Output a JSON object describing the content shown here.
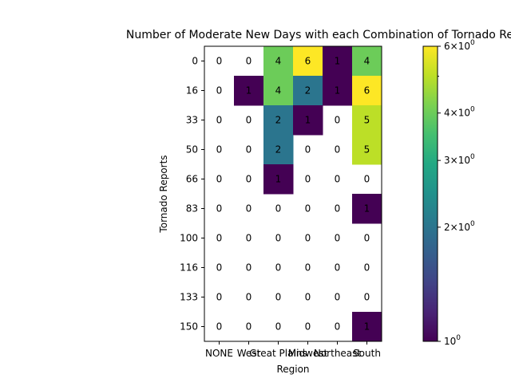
{
  "chart_data": {
    "type": "heatmap",
    "title": "Number of Moderate New Days with each Combination of Tornado Reports and Region",
    "xlabel": "Region",
    "ylabel": "Tornado Reports",
    "x_categories": [
      "NONE",
      "West",
      "Great Plains",
      "Midwest",
      "Northeast",
      "South"
    ],
    "x_tick_labels": [
      "NONE",
      "West",
      "Great Plains",
      "Midwest",
      "Northeast",
      "South"
    ],
    "y_categories": [
      "0",
      "16",
      "33",
      "50",
      "66",
      "83",
      "100",
      "116",
      "133",
      "150"
    ],
    "values": [
      [
        0,
        0,
        4,
        6,
        1,
        4
      ],
      [
        0,
        1,
        4,
        2,
        1,
        6
      ],
      [
        0,
        0,
        2,
        1,
        0,
        5
      ],
      [
        0,
        0,
        2,
        0,
        0,
        5
      ],
      [
        0,
        0,
        1,
        0,
        0,
        0
      ],
      [
        0,
        0,
        0,
        0,
        0,
        1
      ],
      [
        0,
        0,
        0,
        0,
        0,
        0
      ],
      [
        0,
        0,
        0,
        0,
        0,
        0
      ],
      [
        0,
        0,
        0,
        0,
        0,
        0
      ],
      [
        0,
        0,
        0,
        0,
        0,
        1
      ]
    ],
    "color_scale": "log",
    "colormap": "viridis",
    "zero_cells": "white (not colored)",
    "colorbar": {
      "range": [
        1,
        6
      ],
      "tick_values": [
        1,
        2,
        3,
        4,
        6
      ],
      "tick_labels": [
        "10^0",
        "2×10^0",
        "3×10^0",
        "4×10^0",
        "6×10^0"
      ],
      "has_minor_tick_at": 5
    },
    "grid": false,
    "legend": "none"
  }
}
